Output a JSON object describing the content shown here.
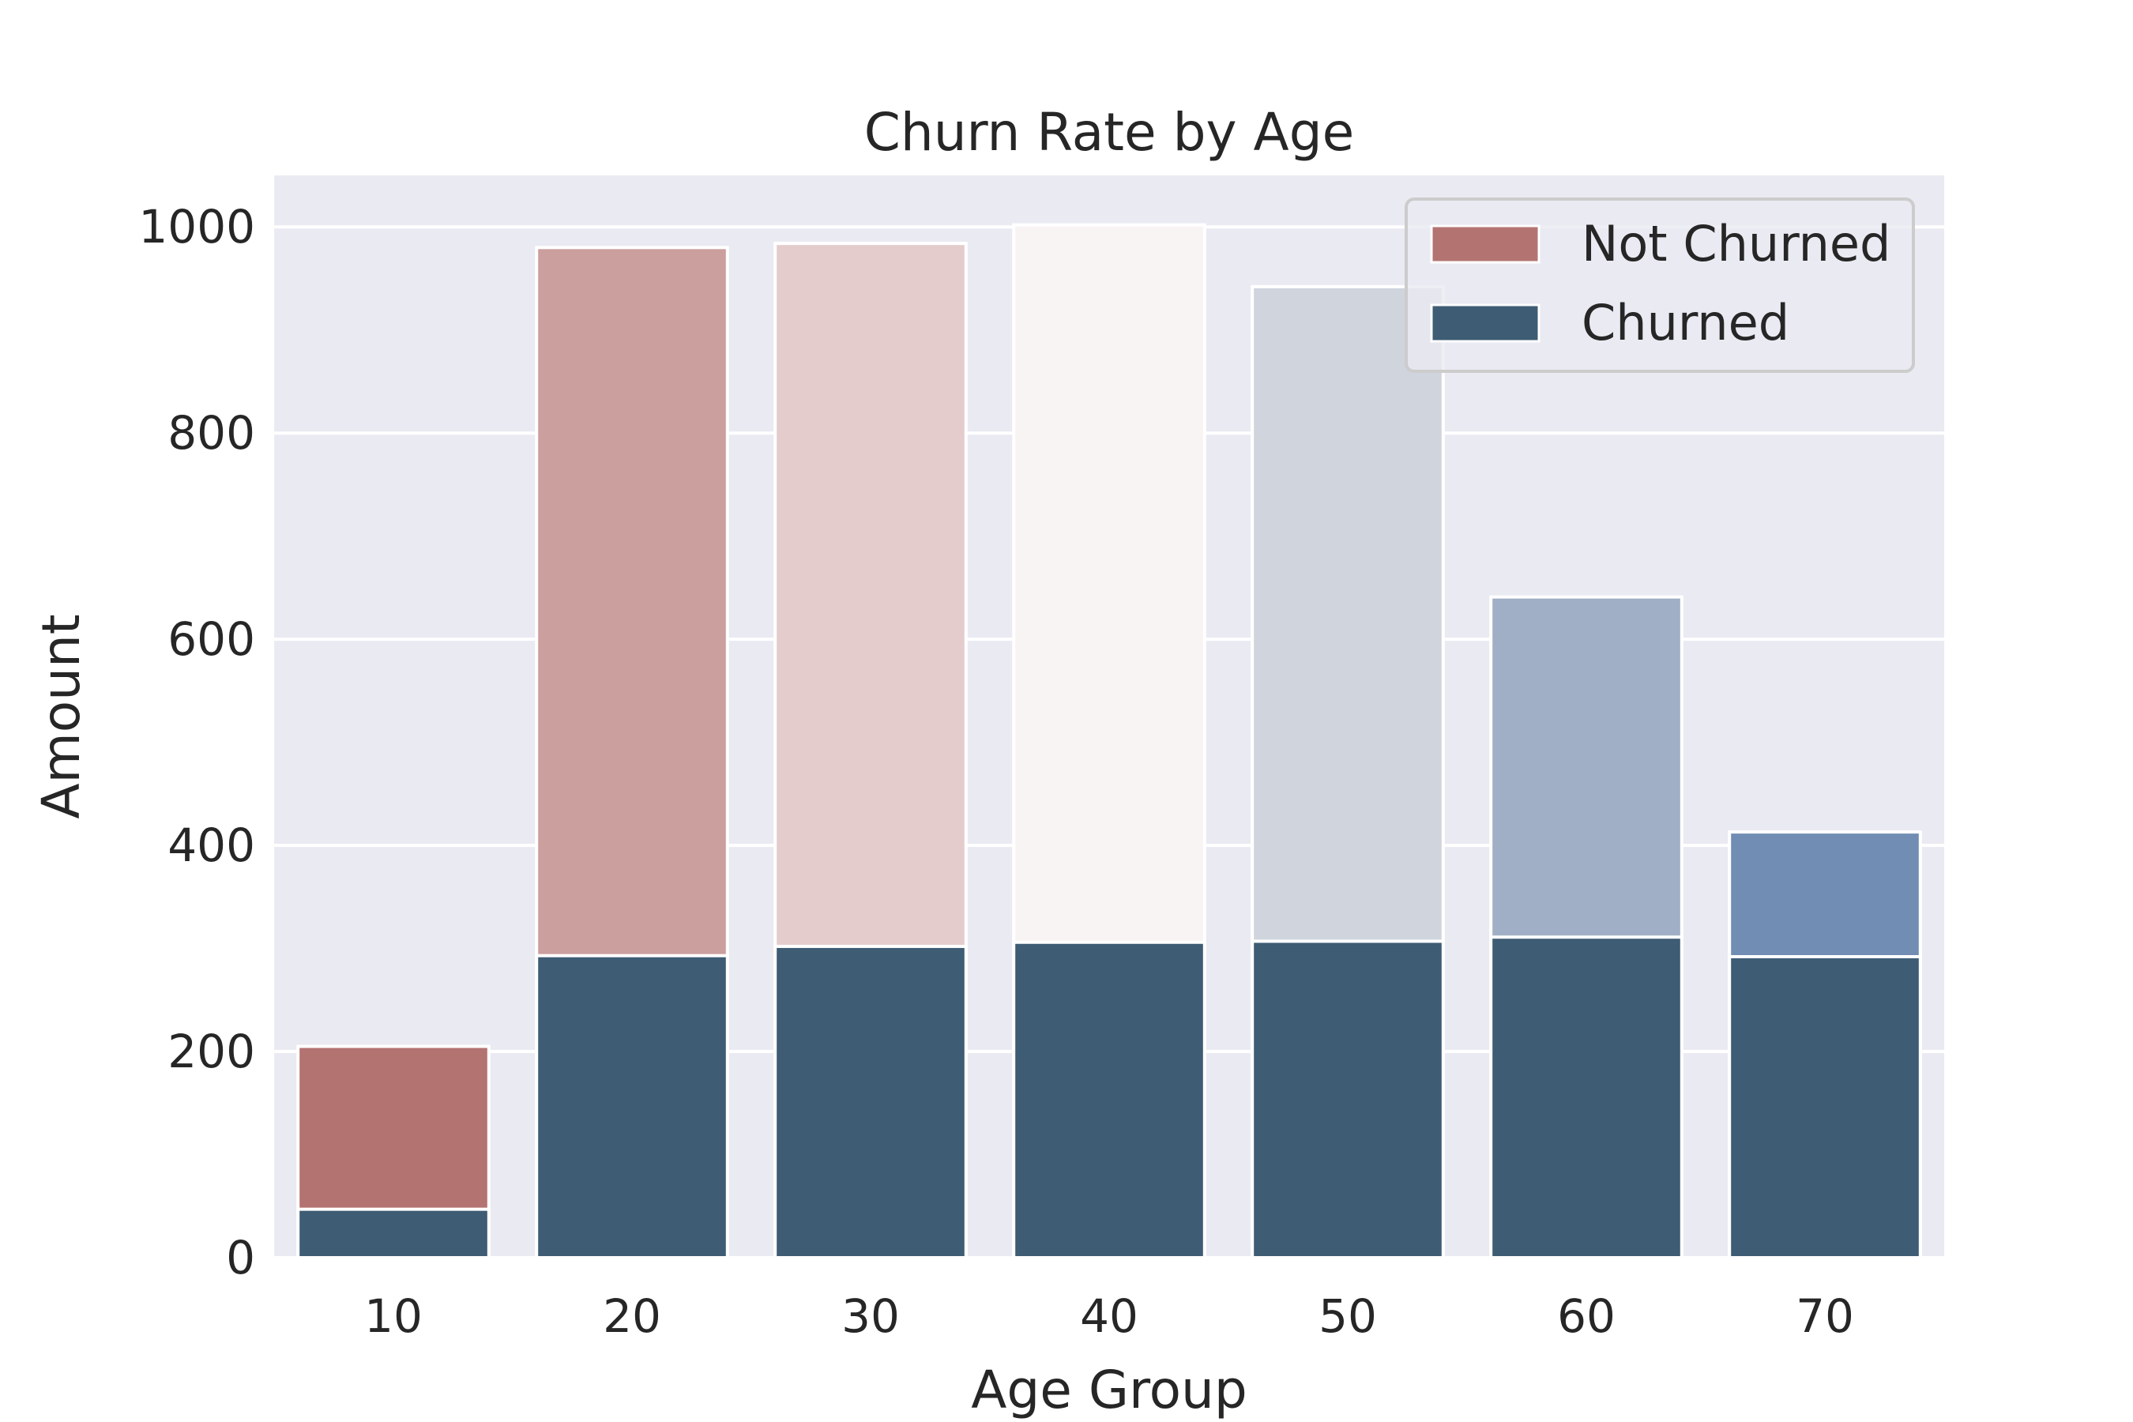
{
  "chart_data": {
    "type": "bar",
    "title": "Churn Rate by Age",
    "xlabel": "Age Group",
    "ylabel": "Amount",
    "categories": [
      "10",
      "20",
      "30",
      "40",
      "50",
      "60",
      "70"
    ],
    "ylim": [
      0,
      1050
    ],
    "yticks": [
      0,
      200,
      400,
      600,
      800,
      1000
    ],
    "grid": true,
    "legend_position": "top-right",
    "series": [
      {
        "name": "Not Churned",
        "values": [
          205,
          980,
          984,
          1002,
          942,
          641,
          413
        ],
        "colors": [
          "#b37371",
          "#cb9f9e",
          "#e4cccd",
          "#f8f4f4",
          "#d0d4dd",
          "#a0afc5",
          "#718db3"
        ],
        "legend_color": "#b37371"
      },
      {
        "name": "Churned",
        "values": [
          47,
          293,
          302,
          306,
          307,
          311,
          292
        ],
        "colors": [
          "#3e5c74",
          "#3e5c74",
          "#3e5c74",
          "#3e5c74",
          "#3e5c74",
          "#3e5c74",
          "#3e5c74"
        ],
        "legend_color": "#3e5c74"
      }
    ],
    "colors": {
      "plot_background": "#eaeaf2",
      "grid": "#ffffff",
      "bar_edge": "#ffffff",
      "text": "#262626"
    }
  }
}
